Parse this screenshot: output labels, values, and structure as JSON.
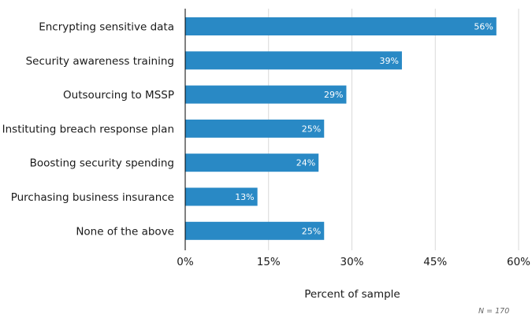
{
  "chart_data": {
    "type": "bar",
    "orientation": "horizontal",
    "categories": [
      "Encrypting sensitive data",
      "Security awareness training",
      "Outsourcing to MSSP",
      "Instituting breach response plan",
      "Boosting security spending",
      "Purchasing business insurance",
      "None of the above"
    ],
    "values": [
      56,
      39,
      29,
      25,
      24,
      13,
      25
    ],
    "data_labels": [
      "56%",
      "39%",
      "29%",
      "25%",
      "24%",
      "13%",
      "25%"
    ],
    "xlabel": "Percent of sample",
    "ylabel": "",
    "xlim": [
      0,
      60
    ],
    "ticks": [
      0,
      15,
      30,
      45,
      60
    ],
    "tick_labels": [
      "0%",
      "15%",
      "30%",
      "45%",
      "60%"
    ],
    "grid": true,
    "note": "N = 170",
    "colors": {
      "bar": "#2989c5",
      "grid": "#d9d9d9",
      "axis": "#000000"
    }
  }
}
